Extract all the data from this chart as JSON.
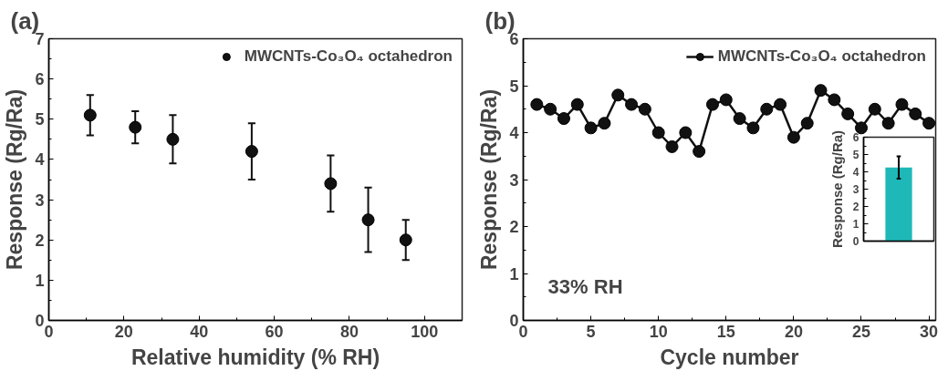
{
  "chart_data": [
    {
      "type": "scatter",
      "title": "(a)",
      "xlabel": "Relative humidity (% RH)",
      "ylabel": "Response (Rg/Ra)",
      "x": [
        11,
        23,
        33,
        54,
        75,
        85,
        95
      ],
      "series": [
        {
          "name": "MWCNTs-Co₃O₄ octahedron",
          "color": "#111111",
          "values": [
            5.1,
            4.8,
            4.5,
            4.2,
            3.4,
            2.5,
            2.0
          ],
          "errors": [
            0.5,
            0.4,
            0.6,
            0.7,
            0.7,
            0.8,
            0.5
          ]
        }
      ],
      "xlim": [
        0,
        110
      ],
      "xticks": [
        0,
        20,
        40,
        60,
        80,
        100
      ],
      "ylim": [
        0,
        7
      ],
      "yticks": [
        0,
        1,
        2,
        3,
        4,
        5,
        6,
        7
      ],
      "legend": "top right",
      "marker": "circle",
      "grid": false
    },
    {
      "type": "line",
      "title": "(b)",
      "xlabel": "Cycle number",
      "ylabel": "Response (Rg/Ra)",
      "x": [
        1,
        2,
        3,
        4,
        5,
        6,
        7,
        8,
        9,
        10,
        11,
        12,
        13,
        14,
        15,
        16,
        17,
        18,
        19,
        20,
        21,
        22,
        23,
        24,
        25,
        26,
        27,
        28,
        29,
        30
      ],
      "series": [
        {
          "name": "MWCNTs-Co₃O₄ octahedron",
          "color": "#111111",
          "values": [
            4.6,
            4.5,
            4.3,
            4.6,
            4.1,
            4.2,
            4.8,
            4.6,
            4.5,
            4.0,
            3.7,
            4.0,
            3.6,
            4.6,
            4.7,
            4.3,
            4.1,
            4.5,
            4.6,
            3.9,
            4.2,
            4.9,
            4.7,
            4.4,
            4.1,
            4.5,
            4.2,
            4.6,
            4.4,
            4.2
          ]
        }
      ],
      "xlim": [
        0,
        30.5
      ],
      "xticks": [
        0,
        5,
        10,
        15,
        20,
        25,
        30
      ],
      "ylim": [
        0,
        6
      ],
      "yticks": [
        0,
        1,
        2,
        3,
        4,
        5,
        6
      ],
      "annotations": [
        "33% RH"
      ],
      "legend": "top right",
      "marker": "circle",
      "line_style": "solid",
      "grid": false
    },
    {
      "type": "bar",
      "ylabel": "Response (Rg/Ra)",
      "categories": [
        null
      ],
      "values": [
        4.25
      ],
      "errors": [
        [
          3.6,
          4.9
        ]
      ],
      "color": "#1fb8b8",
      "ylim": [
        0,
        6
      ],
      "yticks": [
        0,
        1,
        2,
        3,
        4,
        5,
        6
      ],
      "tick_labels": "y",
      "grid": false
    }
  ]
}
